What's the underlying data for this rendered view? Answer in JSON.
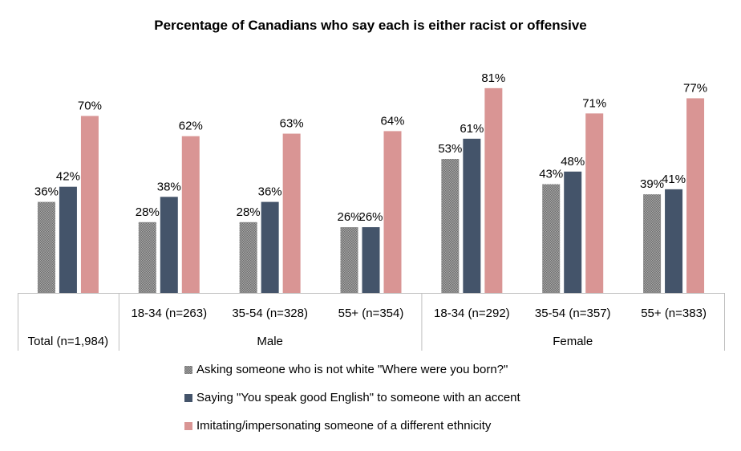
{
  "chart_data": {
    "type": "bar",
    "title": "Percentage of Canadians who say each is either racist or offensive",
    "categories": [
      {
        "label": "Total (n=1,984)",
        "group": ""
      },
      {
        "label": "18-34 (n=263)",
        "group": "Male"
      },
      {
        "label": "35-54 (n=328)",
        "group": "Male"
      },
      {
        "label": "55+ (n=354)",
        "group": "Male"
      },
      {
        "label": "18-34 (n=292)",
        "group": "Female"
      },
      {
        "label": "35-54 (n=357)",
        "group": "Female"
      },
      {
        "label": "55+ (n=383)",
        "group": "Female"
      }
    ],
    "groups": [
      "Male",
      "Female"
    ],
    "series": [
      {
        "name": "Asking someone who is not white \"Where were you born?\"",
        "color": "#8c8c8c",
        "pattern": "dotted",
        "values": [
          36,
          28,
          28,
          26,
          53,
          43,
          39
        ]
      },
      {
        "name": "Saying \"You speak good English\" to someone with an accent",
        "color": "#44546a",
        "values": [
          42,
          38,
          36,
          26,
          61,
          48,
          41
        ]
      },
      {
        "name": "Imitating/impersonating someone of a different ethnicity",
        "color": "#d99594",
        "values": [
          70,
          62,
          63,
          64,
          81,
          71,
          77
        ]
      }
    ],
    "value_suffix": "%",
    "ylim": [
      0,
      100
    ],
    "grid": false,
    "legend": "bottom"
  }
}
